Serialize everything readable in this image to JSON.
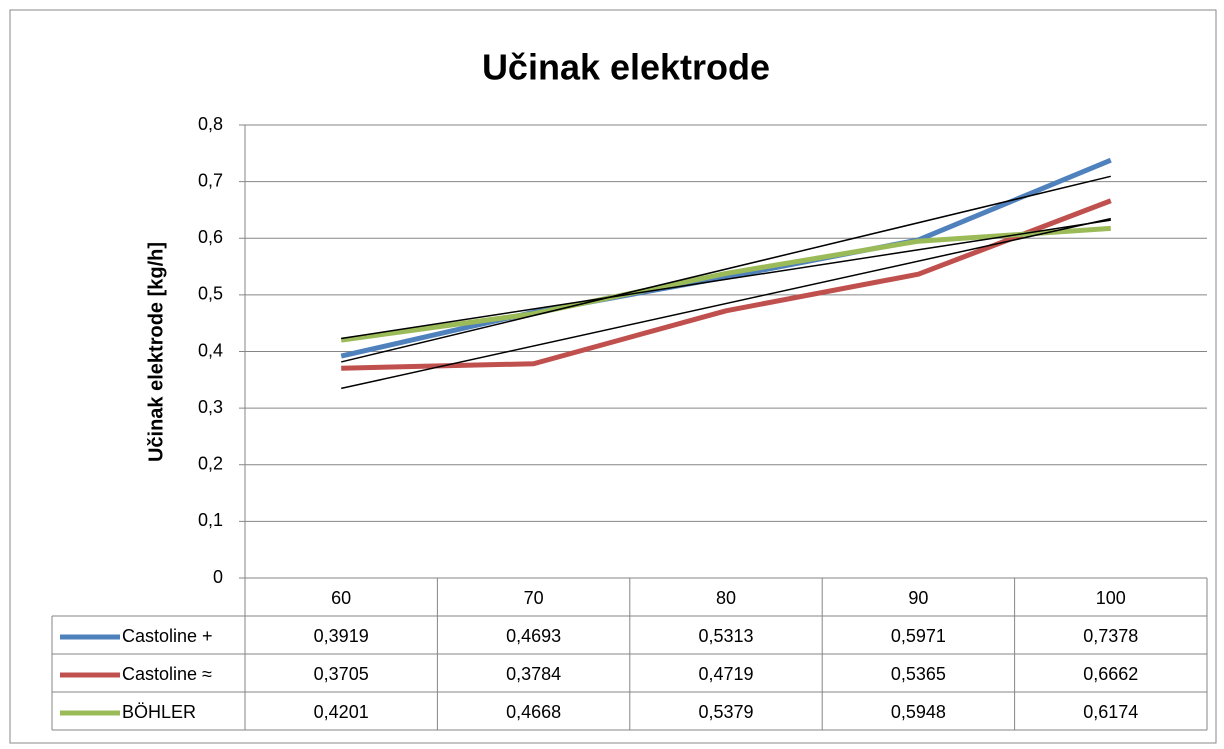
{
  "chart_data": {
    "type": "line",
    "title": "Učinak elektrode",
    "y_label": "Učinak elektrode [kg/h]",
    "categories": [
      "60",
      "70",
      "80",
      "90",
      "100"
    ],
    "series": [
      {
        "name": "Castoline +",
        "color": "#4f81bd",
        "values": [
          0.3919,
          0.4693,
          0.5313,
          0.5971,
          0.7378
        ],
        "value_labels": [
          "0,3919",
          "0,4693",
          "0,5313",
          "0,5971",
          "0,7378"
        ]
      },
      {
        "name": "Castoline ≈",
        "color": "#c0504d",
        "values": [
          0.3705,
          0.3784,
          0.4719,
          0.5365,
          0.6662
        ],
        "value_labels": [
          "0,3705",
          "0,3784",
          "0,4719",
          "0,5365",
          "0,6662"
        ]
      },
      {
        "name": "BÖHLER",
        "color": "#9bbb59",
        "values": [
          0.4201,
          0.4668,
          0.5379,
          0.5948,
          0.6174
        ],
        "value_labels": [
          "0,4201",
          "0,4668",
          "0,5379",
          "0,5948",
          "0,6174"
        ]
      }
    ],
    "ylim": [
      0,
      0.8
    ],
    "yticks": [
      0,
      {
        "value": 0.1,
        "label": "0,1"
      },
      {
        "value": 0.2,
        "label": "0,2"
      },
      {
        "value": 0.3,
        "label": "0,3"
      },
      {
        "value": 0.4,
        "label": "0,4"
      },
      {
        "value": 0.5,
        "label": "0,5"
      },
      {
        "value": 0.6,
        "label": "0,6"
      },
      {
        "value": 0.7,
        "label": "0,7"
      },
      {
        "value": 0.8,
        "label": "0,8"
      }
    ],
    "grid": true,
    "trendline": "linear",
    "legend": "data-table"
  }
}
